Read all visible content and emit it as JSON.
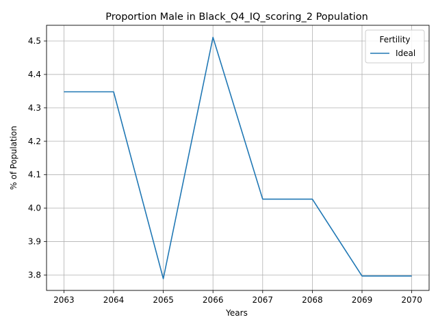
{
  "chart_data": {
    "type": "line",
    "title": "Proportion Male in Black_Q4_IQ_scoring_2 Population",
    "xlabel": "Years",
    "ylabel": "% of Population",
    "x": [
      2063,
      2064,
      2065,
      2066,
      2067,
      2068,
      2069,
      2070
    ],
    "xlim": [
      2062.65,
      2070.35
    ],
    "ylim": [
      3.754,
      4.547
    ],
    "yticks": [
      3.8,
      3.9,
      4.0,
      4.1,
      4.2,
      4.3,
      4.4,
      4.5
    ],
    "ytick_labels": [
      "3.8",
      "3.9",
      "4.0",
      "4.1",
      "4.2",
      "4.3",
      "4.4",
      "4.5"
    ],
    "xtick_labels": [
      "2063",
      "2064",
      "2065",
      "2066",
      "2067",
      "2068",
      "2069",
      "2070"
    ],
    "grid": true,
    "legend": {
      "title": "Fertility",
      "placement": "top-right"
    },
    "series": [
      {
        "name": "Ideal",
        "color": "#1f77b4",
        "values": [
          4.348,
          4.348,
          3.789,
          4.511,
          4.027,
          4.027,
          3.797,
          3.797
        ]
      }
    ]
  }
}
